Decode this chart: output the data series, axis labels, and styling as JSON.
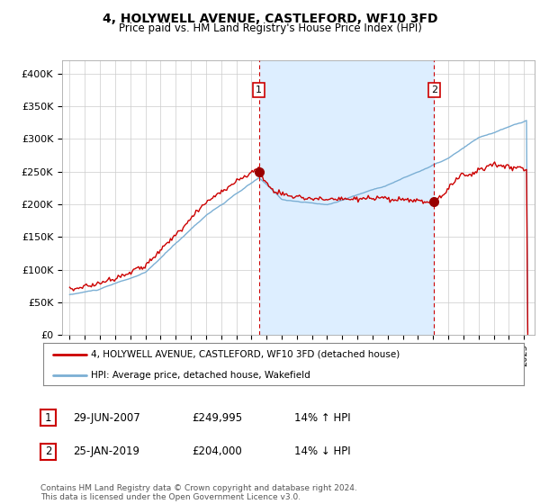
{
  "title": "4, HOLYWELL AVENUE, CASTLEFORD, WF10 3FD",
  "subtitle": "Price paid vs. HM Land Registry's House Price Index (HPI)",
  "ylim": [
    0,
    420000
  ],
  "yticks": [
    0,
    50000,
    100000,
    150000,
    200000,
    250000,
    300000,
    350000,
    400000
  ],
  "ytick_labels": [
    "£0",
    "£50K",
    "£100K",
    "£150K",
    "£200K",
    "£250K",
    "£300K",
    "£350K",
    "£400K"
  ],
  "sale1_date": 2007.49,
  "sale1_price": 249995,
  "sale1_label": "1",
  "sale2_date": 2019.07,
  "sale2_price": 204000,
  "sale2_label": "2",
  "red_line_color": "#cc0000",
  "blue_line_color": "#7bafd4",
  "shade_color": "#ddeeff",
  "sale_marker_color": "#990000",
  "dashed_line_color": "#cc0000",
  "legend_label_red": "4, HOLYWELL AVENUE, CASTLEFORD, WF10 3FD (detached house)",
  "legend_label_blue": "HPI: Average price, detached house, Wakefield",
  "table_row1": [
    "1",
    "29-JUN-2007",
    "£249,995",
    "14% ↑ HPI"
  ],
  "table_row2": [
    "2",
    "25-JAN-2019",
    "£204,000",
    "14% ↓ HPI"
  ],
  "footnote": "Contains HM Land Registry data © Crown copyright and database right 2024.\nThis data is licensed under the Open Government Licence v3.0.",
  "bg_color": "#ffffff",
  "plot_bg_color": "#ffffff",
  "grid_color": "#cccccc"
}
